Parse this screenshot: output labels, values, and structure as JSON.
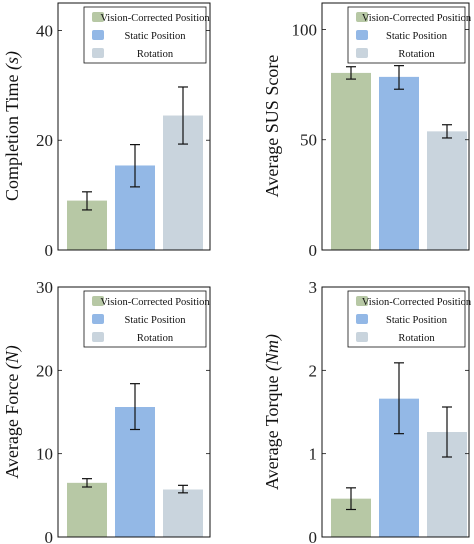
{
  "colors": {
    "vision": "#b7c8a5",
    "static": "#93b8e6",
    "rotation": "#c9d4dd"
  },
  "chart_data": [
    {
      "type": "bar",
      "ylabel": "Completion Time",
      "yunit": "(s)",
      "ylim": [
        0,
        45
      ],
      "yticks": [
        0,
        20,
        40
      ],
      "legend_position": "top-right",
      "series": [
        {
          "name": "Vision-Corrected Position",
          "value": 9.0,
          "err_low": 7.3,
          "err_high": 10.6
        },
        {
          "name": "Static Position",
          "value": 15.4,
          "err_low": 11.5,
          "err_high": 19.2
        },
        {
          "name": "Rotation",
          "value": 24.5,
          "err_low": 19.3,
          "err_high": 29.7
        }
      ]
    },
    {
      "type": "bar",
      "ylabel": "Average SUS Score",
      "yunit": "",
      "ylim": [
        0,
        112
      ],
      "yticks": [
        0,
        50,
        100
      ],
      "legend_position": "top-right",
      "series": [
        {
          "name": "Vision-Corrected Position",
          "value": 80.3,
          "err_low": 77.5,
          "err_high": 83.1
        },
        {
          "name": "Static Position",
          "value": 78.5,
          "err_low": 72.9,
          "err_high": 83.6
        },
        {
          "name": "Rotation",
          "value": 53.8,
          "err_low": 50.8,
          "err_high": 56.8
        }
      ]
    },
    {
      "type": "bar",
      "ylabel": "Average Force",
      "yunit": "(N)",
      "ylim": [
        0,
        30
      ],
      "yticks": [
        0,
        10,
        20,
        30
      ],
      "legend_position": "top-right",
      "series": [
        {
          "name": "Vision-Corrected Position",
          "value": 6.5,
          "err_low": 6.0,
          "err_high": 7.0
        },
        {
          "name": "Static Position",
          "value": 15.6,
          "err_low": 12.9,
          "err_high": 18.4
        },
        {
          "name": "Rotation",
          "value": 5.7,
          "err_low": 5.3,
          "err_high": 6.2
        }
      ]
    },
    {
      "type": "bar",
      "ylabel": "Average Torque",
      "yunit": "(Nm)",
      "ylim": [
        0,
        3
      ],
      "yticks": [
        0,
        1,
        2,
        3
      ],
      "legend_position": "top-right",
      "series": [
        {
          "name": "Vision-Corrected Position",
          "value": 0.46,
          "err_low": 0.33,
          "err_high": 0.59
        },
        {
          "name": "Static Position",
          "value": 1.66,
          "err_low": 1.24,
          "err_high": 2.09
        },
        {
          "name": "Rotation",
          "value": 1.26,
          "err_low": 0.96,
          "err_high": 1.56
        }
      ]
    }
  ]
}
